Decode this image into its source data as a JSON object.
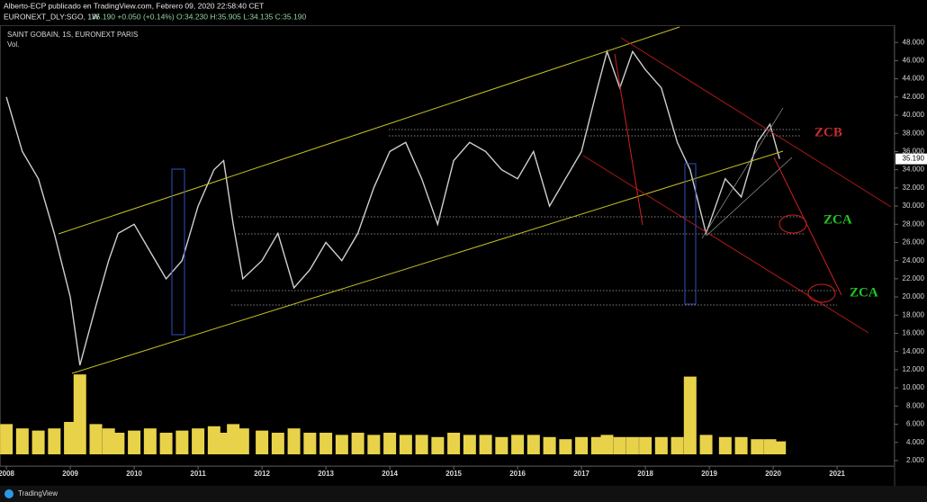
{
  "header": {
    "published": "Alberto-ECP publicado en TradingView.com, Febrero 09, 2020 22:58:40 CET",
    "symbol": "EURONEXT_DLY:SGO, 1W",
    "quote": "35.190 +0.050 (+0.14%) O:34.230 H:35.905 L:34.135 C:35.190"
  },
  "footer": {
    "brand": "TradingView"
  },
  "chart_data": {
    "type": "line",
    "title": "SAINT GOBAIN, 1S, EURONEXT PARIS",
    "subtitle": "Vol.",
    "color": "#cfcfcf",
    "volume_color": "#e8d24a",
    "x": [
      2008.0,
      2008.25,
      2008.5,
      2008.75,
      2009.0,
      2009.15,
      2009.4,
      2009.6,
      2009.75,
      2010.0,
      2010.25,
      2010.5,
      2010.75,
      2011.0,
      2011.25,
      2011.4,
      2011.55,
      2011.7,
      2012.0,
      2012.25,
      2012.5,
      2012.75,
      2013.0,
      2013.25,
      2013.5,
      2013.75,
      2014.0,
      2014.25,
      2014.5,
      2014.75,
      2015.0,
      2015.25,
      2015.5,
      2015.75,
      2016.0,
      2016.25,
      2016.5,
      2016.75,
      2017.0,
      2017.25,
      2017.4,
      2017.6,
      2017.8,
      2018.0,
      2018.25,
      2018.5,
      2018.7,
      2018.95,
      2019.25,
      2019.5,
      2019.75,
      2019.95,
      2020.1
    ],
    "values": [
      42,
      36,
      33,
      27,
      20,
      12.5,
      19,
      24,
      27,
      28,
      25,
      22,
      24,
      30,
      34,
      35,
      28,
      22,
      24,
      27,
      21,
      23,
      26,
      24,
      27,
      32,
      36,
      37,
      33,
      28,
      35,
      37,
      36,
      34,
      33,
      36,
      30,
      33,
      36,
      43,
      47,
      43,
      47,
      45,
      43,
      37,
      34,
      27,
      33,
      31,
      37,
      39,
      35.19
    ],
    "volume": [
      7,
      6,
      5.5,
      6,
      7.5,
      18.5,
      7,
      6,
      5,
      5.5,
      6,
      5,
      5.5,
      6,
      6.5,
      5,
      7,
      6,
      5.5,
      5,
      6,
      5,
      5,
      4.5,
      5,
      4.5,
      5,
      4.5,
      4.5,
      4,
      5,
      4.5,
      4.5,
      4,
      4.5,
      4.5,
      4,
      3.5,
      4,
      4,
      4.5,
      4,
      4,
      4,
      4,
      4,
      18,
      4.5,
      4,
      4,
      3.5,
      3.5,
      3
    ],
    "vlim": [
      0,
      25
    ],
    "xlim": [
      2007.9,
      2021.9
    ],
    "xticks": [
      2008,
      2009,
      2010,
      2011,
      2012,
      2013,
      2014,
      2015,
      2016,
      2017,
      2018,
      2019,
      2020,
      2021
    ],
    "ylim": [
      1.4,
      49.9
    ],
    "yticks": [
      {
        "value": 2,
        "label": "2.000"
      },
      {
        "value": 4,
        "label": "4.000"
      },
      {
        "value": 6,
        "label": "6.000"
      },
      {
        "value": 8,
        "label": "8.000"
      },
      {
        "value": 10,
        "label": "10.000"
      },
      {
        "value": 12,
        "label": "12.000"
      },
      {
        "value": 14,
        "label": "14.000"
      },
      {
        "value": 16,
        "label": "16.000"
      },
      {
        "value": 18,
        "label": "18.000"
      },
      {
        "value": 20,
        "label": "20.000"
      },
      {
        "value": 22,
        "label": "22.000"
      },
      {
        "value": 24,
        "label": "24.000"
      },
      {
        "value": 26,
        "label": "26.000"
      },
      {
        "value": 28,
        "label": "28.000"
      },
      {
        "value": 30,
        "label": "30.000"
      },
      {
        "value": 32,
        "label": "32.000"
      },
      {
        "value": 34,
        "label": "34.000"
      },
      {
        "value": 36,
        "label": "36.000"
      },
      {
        "value": 38,
        "label": "38.000"
      },
      {
        "value": 40,
        "label": "40.000"
      },
      {
        "value": 42,
        "label": "42.000"
      },
      {
        "value": 44,
        "label": "44.000"
      },
      {
        "value": 46,
        "label": "46.000"
      },
      {
        "value": 48,
        "label": "48.000"
      }
    ],
    "last_price": {
      "value": 35.19,
      "label": "35.190"
    },
    "annotations": [
      {
        "text": "ZCB",
        "color": "#c0302c"
      },
      {
        "text": "ZCA",
        "color": "#22c422"
      },
      {
        "text": "ZCA",
        "color": "#22c422"
      }
    ]
  }
}
